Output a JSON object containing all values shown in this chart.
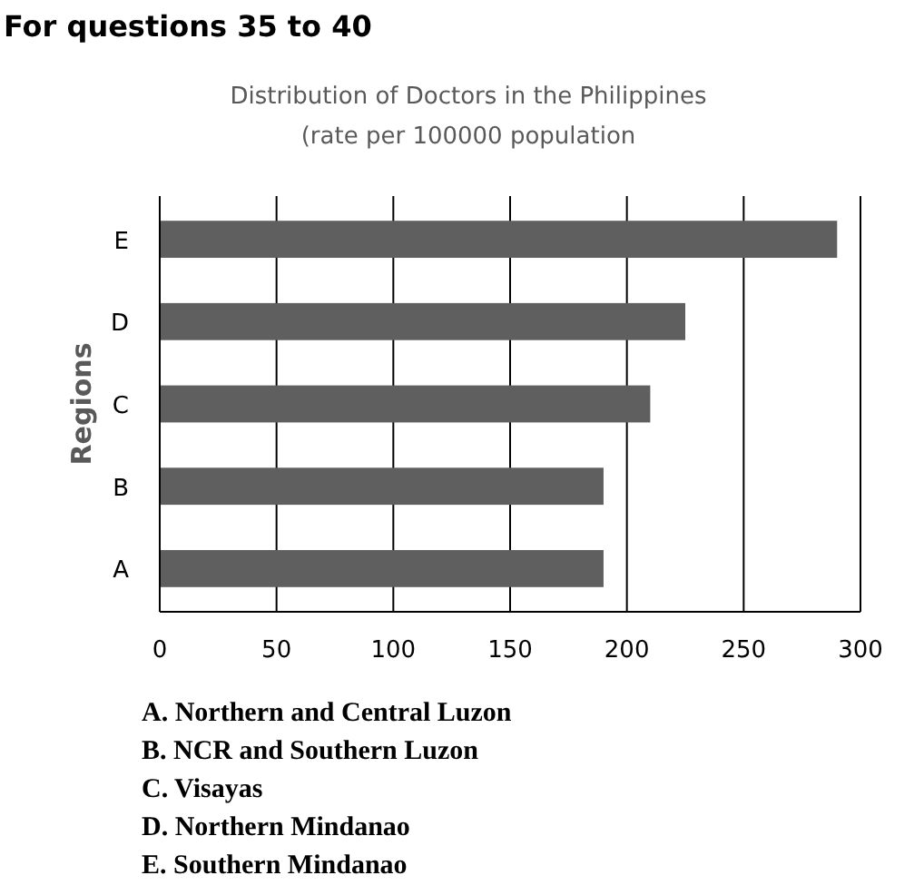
{
  "chart_data": {
    "type": "bar",
    "orientation": "horizontal",
    "title": "Distribution of Doctors in the Philippines\n(rate per 100000 population",
    "ylabel": "Regions",
    "categories": [
      "E",
      "D",
      "C",
      "B",
      "A"
    ],
    "values": [
      290,
      225,
      210,
      190,
      190
    ],
    "color": "#5f5f5f",
    "xlim": [
      0,
      300
    ],
    "xticks": [
      0,
      50,
      100,
      150,
      200,
      250,
      300
    ],
    "grid": "x",
    "annotations": [
      "For questions 35 to 40",
      "A. Northern and Central Luzon",
      "B. NCR and Southern Luzon",
      "C. Visayas",
      "D. Northern Mindanao",
      "E. Southern Mindanao"
    ]
  }
}
